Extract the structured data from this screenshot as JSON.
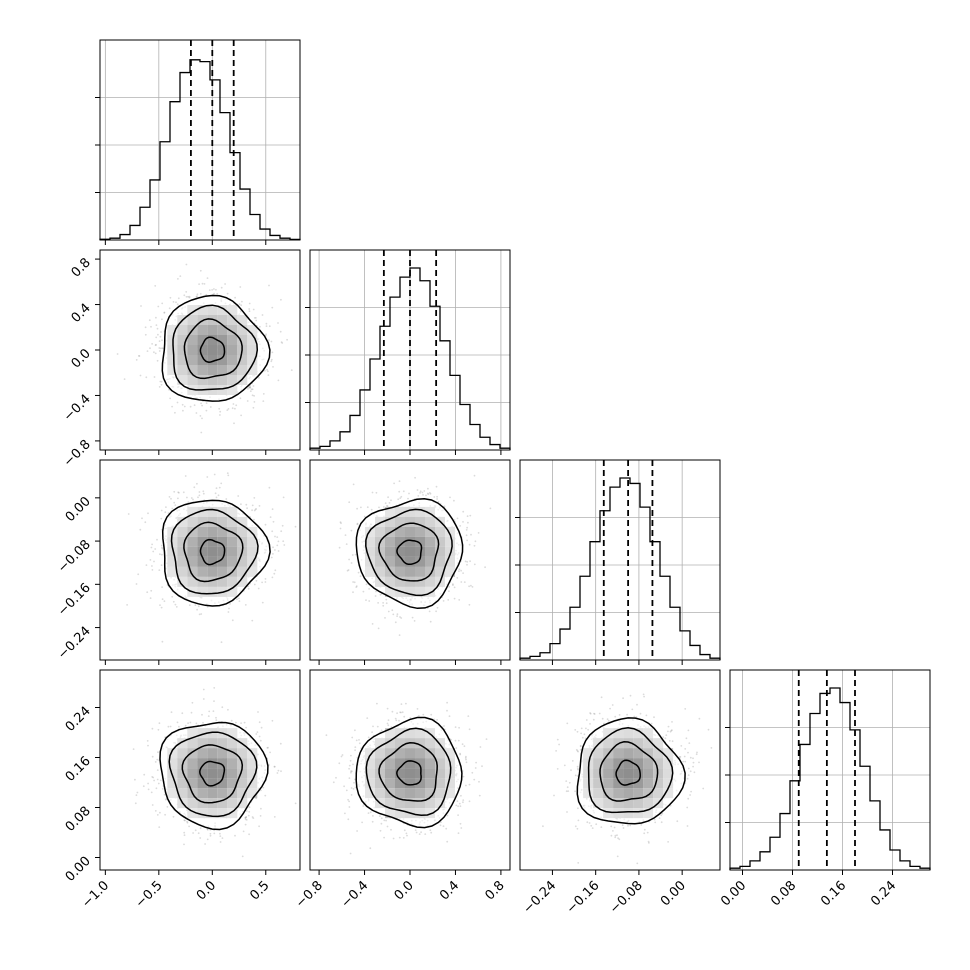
{
  "chart_data": {
    "type": "corner",
    "n_params": 4,
    "parameters": [
      {
        "ticks": [
          -1.0,
          -0.5,
          0.0,
          0.5
        ],
        "tick_labels": [
          "−1.0",
          "−0.5",
          "0.0",
          "0.5"
        ],
        "range": [
          -1.05,
          0.82
        ],
        "quantiles": [
          -0.2,
          0.0,
          0.2
        ]
      },
      {
        "ticks": [
          -0.8,
          -0.4,
          0.0,
          0.4,
          0.8
        ],
        "tick_labels": [
          "−0.8",
          "−0.4",
          "0.0",
          "0.4",
          "0.8"
        ],
        "range": [
          -0.88,
          0.88
        ],
        "quantiles": [
          -0.23,
          0.0,
          0.23
        ]
      },
      {
        "ticks": [
          -0.24,
          -0.16,
          -0.08,
          0.0
        ],
        "tick_labels": [
          "−0.24",
          "−0.16",
          "−0.08",
          "0.00"
        ],
        "range": [
          -0.3,
          0.07
        ],
        "quantiles": [
          -0.145,
          -0.1,
          -0.055
        ]
      },
      {
        "ticks": [
          0.0,
          0.08,
          0.16,
          0.24
        ],
        "tick_labels": [
          "0.00",
          "0.08",
          "0.16",
          "0.24"
        ],
        "range": [
          -0.02,
          0.3
        ],
        "quantiles": [
          0.09,
          0.135,
          0.18
        ]
      }
    ],
    "histograms": [
      [
        0.004,
        0.01,
        0.03,
        0.08,
        0.18,
        0.33,
        0.54,
        0.76,
        0.92,
        0.99,
        0.98,
        0.88,
        0.7,
        0.48,
        0.28,
        0.14,
        0.06,
        0.025,
        0.01,
        0.003
      ],
      [
        0.01,
        0.02,
        0.05,
        0.1,
        0.19,
        0.33,
        0.5,
        0.68,
        0.84,
        0.95,
        1.0,
        0.93,
        0.79,
        0.6,
        0.41,
        0.25,
        0.14,
        0.07,
        0.03,
        0.01
      ],
      [
        0.01,
        0.02,
        0.04,
        0.09,
        0.17,
        0.29,
        0.46,
        0.65,
        0.82,
        0.95,
        1.0,
        0.97,
        0.84,
        0.65,
        0.46,
        0.29,
        0.16,
        0.08,
        0.03,
        0.01
      ],
      [
        0.01,
        0.02,
        0.05,
        0.1,
        0.18,
        0.31,
        0.49,
        0.69,
        0.86,
        0.97,
        1.0,
        0.92,
        0.77,
        0.57,
        0.38,
        0.22,
        0.11,
        0.05,
        0.02,
        0.01
      ]
    ],
    "pair_centers": {
      "1-0": [
        0.0,
        0.0
      ],
      "2-0": [
        0.0,
        -0.1
      ],
      "2-1": [
        0.0,
        -0.1
      ],
      "3-0": [
        0.0,
        0.135
      ],
      "3-1": [
        0.0,
        0.135
      ],
      "3-2": [
        -0.1,
        0.135
      ]
    },
    "contour_levels": 4,
    "grid": true,
    "colors": {
      "contour": "#000000",
      "scatter": "#999999",
      "grid": "#b0b0b0"
    }
  }
}
